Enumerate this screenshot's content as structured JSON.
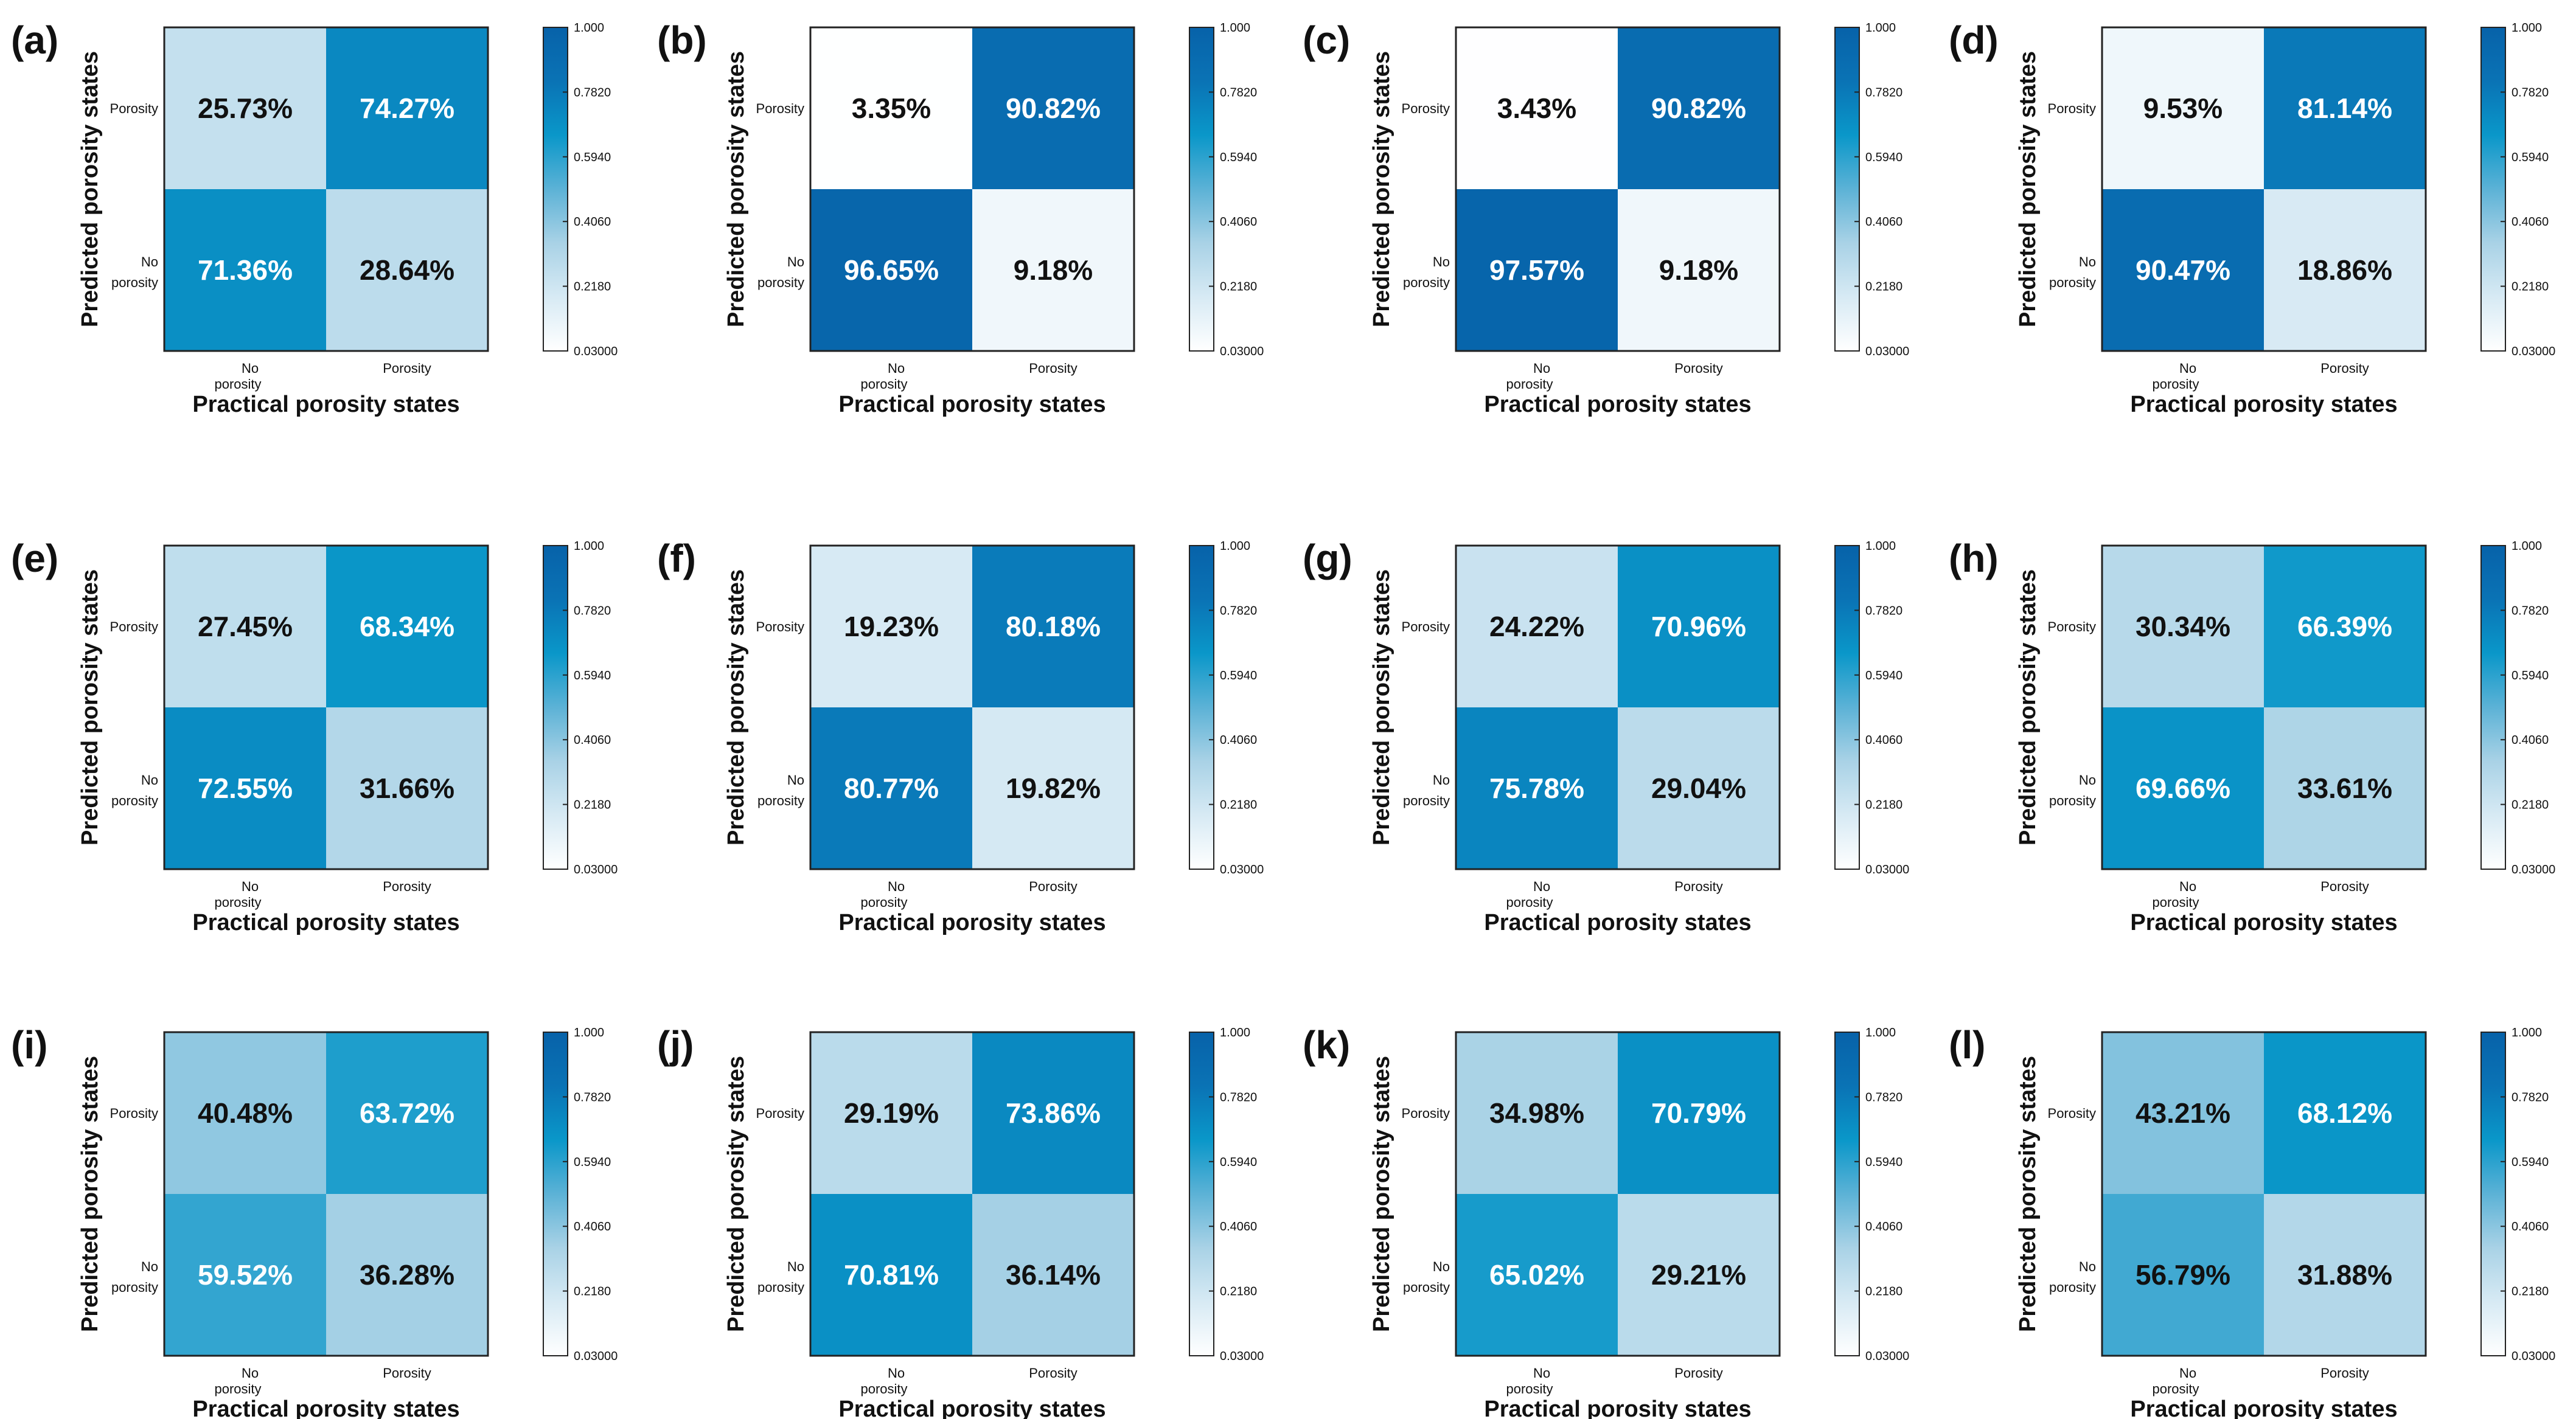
{
  "figure": {
    "colormap": {
      "low_color": "#ffffff",
      "high_color": "#0762a9",
      "stops": [
        "#ffffff",
        "#d7eaf4",
        "#a9d2e6",
        "#5cb2d6",
        "#0a97c9",
        "#0a73b5",
        "#0762a9"
      ]
    }
  },
  "chart_data": [
    {
      "type": "heatmap",
      "panel": "(a)",
      "xlabel": "Practical porosity states",
      "ylabel": "Predicted porosity states",
      "x_ticks": [
        "No porosity",
        "Porosity"
      ],
      "y_ticks": [
        "Porosity",
        "No porosity"
      ],
      "cells": [
        [
          "25.73%",
          "74.27%"
        ],
        [
          "71.36%",
          "28.64%"
        ]
      ],
      "values": [
        [
          0.2573,
          0.7427
        ],
        [
          0.7136,
          0.2864
        ]
      ],
      "colorbar": {
        "min": 0.03,
        "max": 1.0,
        "ticks": [
          "1.000",
          "0.7820",
          "0.5940",
          "0.4060",
          "0.2180",
          "0.03000"
        ]
      }
    },
    {
      "type": "heatmap",
      "panel": "(b)",
      "xlabel": "Practical porosity states",
      "ylabel": "Predicted porosity states",
      "x_ticks": [
        "No porosity",
        "Porosity"
      ],
      "y_ticks": [
        "Porosity",
        "No porosity"
      ],
      "cells": [
        [
          "3.35%",
          "90.82%"
        ],
        [
          "96.65%",
          "9.18%"
        ]
      ],
      "values": [
        [
          0.0335,
          0.9082
        ],
        [
          0.9665,
          0.0918
        ]
      ],
      "colorbar": {
        "min": 0.03,
        "max": 1.0,
        "ticks": [
          "1.000",
          "0.7820",
          "0.5940",
          "0.4060",
          "0.2180",
          "0.03000"
        ]
      }
    },
    {
      "type": "heatmap",
      "panel": "(c)",
      "xlabel": "Practical porosity states",
      "ylabel": "Predicted porosity states",
      "x_ticks": [
        "No porosity",
        "Porosity"
      ],
      "y_ticks": [
        "Porosity",
        "No porosity"
      ],
      "cells": [
        [
          "3.43%",
          "90.82%"
        ],
        [
          "97.57%",
          "9.18%"
        ]
      ],
      "values": [
        [
          0.0343,
          0.9082
        ],
        [
          0.9757,
          0.0918
        ]
      ],
      "colorbar": {
        "min": 0.03,
        "max": 1.0,
        "ticks": [
          "1.000",
          "0.7820",
          "0.5940",
          "0.4060",
          "0.2180",
          "0.03000"
        ]
      }
    },
    {
      "type": "heatmap",
      "panel": "(d)",
      "xlabel": "Practical porosity states",
      "ylabel": "Predicted porosity states",
      "x_ticks": [
        "No porosity",
        "Porosity"
      ],
      "y_ticks": [
        "Porosity",
        "No porosity"
      ],
      "cells": [
        [
          "9.53%",
          "81.14%"
        ],
        [
          "90.47%",
          "18.86%"
        ]
      ],
      "values": [
        [
          0.0953,
          0.8114
        ],
        [
          0.9047,
          0.1886
        ]
      ],
      "colorbar": {
        "min": 0.03,
        "max": 1.0,
        "ticks": [
          "1.000",
          "0.7820",
          "0.5940",
          "0.4060",
          "0.2180",
          "0.03000"
        ]
      }
    },
    {
      "type": "heatmap",
      "panel": "(e)",
      "xlabel": "Practical porosity states",
      "ylabel": "Predicted porosity states",
      "x_ticks": [
        "No porosity",
        "Porosity"
      ],
      "y_ticks": [
        "Porosity",
        "No porosity"
      ],
      "cells": [
        [
          "27.45%",
          "68.34%"
        ],
        [
          "72.55%",
          "31.66%"
        ]
      ],
      "values": [
        [
          0.2745,
          0.6834
        ],
        [
          0.7255,
          0.3166
        ]
      ],
      "colorbar": {
        "min": 0.03,
        "max": 1.0,
        "ticks": [
          "1.000",
          "0.7820",
          "0.5940",
          "0.4060",
          "0.2180",
          "0.03000"
        ]
      }
    },
    {
      "type": "heatmap",
      "panel": "(f)",
      "xlabel": "Practical porosity states",
      "ylabel": "Predicted porosity states",
      "x_ticks": [
        "No porosity",
        "Porosity"
      ],
      "y_ticks": [
        "Porosity",
        "No porosity"
      ],
      "cells": [
        [
          "19.23%",
          "80.18%"
        ],
        [
          "80.77%",
          "19.82%"
        ]
      ],
      "values": [
        [
          0.1923,
          0.8018
        ],
        [
          0.8077,
          0.1982
        ]
      ],
      "colorbar": {
        "min": 0.03,
        "max": 1.0,
        "ticks": [
          "1.000",
          "0.7820",
          "0.5940",
          "0.4060",
          "0.2180",
          "0.03000"
        ]
      }
    },
    {
      "type": "heatmap",
      "panel": "(g)",
      "xlabel": "Practical porosity states",
      "ylabel": "Predicted porosity states",
      "x_ticks": [
        "No porosity",
        "Porosity"
      ],
      "y_ticks": [
        "Porosity",
        "No porosity"
      ],
      "cells": [
        [
          "24.22%",
          "70.96%"
        ],
        [
          "75.78%",
          "29.04%"
        ]
      ],
      "values": [
        [
          0.2422,
          0.7096
        ],
        [
          0.7578,
          0.2904
        ]
      ],
      "colorbar": {
        "min": 0.03,
        "max": 1.0,
        "ticks": [
          "1.000",
          "0.7820",
          "0.5940",
          "0.4060",
          "0.2180",
          "0.03000"
        ]
      }
    },
    {
      "type": "heatmap",
      "panel": "(h)",
      "xlabel": "Practical porosity states",
      "ylabel": "Predicted porosity states",
      "x_ticks": [
        "No porosity",
        "Porosity"
      ],
      "y_ticks": [
        "Porosity",
        "No porosity"
      ],
      "cells": [
        [
          "30.34%",
          "66.39%"
        ],
        [
          "69.66%",
          "33.61%"
        ]
      ],
      "values": [
        [
          0.3034,
          0.6639
        ],
        [
          0.6966,
          0.3361
        ]
      ],
      "colorbar": {
        "min": 0.03,
        "max": 1.0,
        "ticks": [
          "1.000",
          "0.7820",
          "0.5940",
          "0.4060",
          "0.2180",
          "0.03000"
        ]
      }
    },
    {
      "type": "heatmap",
      "panel": "(i)",
      "xlabel": "Practical porosity states",
      "ylabel": "Predicted porosity states",
      "x_ticks": [
        "No porosity",
        "Porosity"
      ],
      "y_ticks": [
        "Porosity",
        "No porosity"
      ],
      "cells": [
        [
          "40.48%",
          "63.72%"
        ],
        [
          "59.52%",
          "36.28%"
        ]
      ],
      "values": [
        [
          0.4048,
          0.6372
        ],
        [
          0.5952,
          0.3628
        ]
      ],
      "colorbar": {
        "min": 0.03,
        "max": 1.0,
        "ticks": [
          "1.000",
          "0.7820",
          "0.5940",
          "0.4060",
          "0.2180",
          "0.03000"
        ]
      }
    },
    {
      "type": "heatmap",
      "panel": "(j)",
      "xlabel": "Practical porosity states",
      "ylabel": "Predicted porosity states",
      "x_ticks": [
        "No porosity",
        "Porosity"
      ],
      "y_ticks": [
        "Porosity",
        "No porosity"
      ],
      "cells": [
        [
          "29.19%",
          "73.86%"
        ],
        [
          "70.81%",
          "36.14%"
        ]
      ],
      "values": [
        [
          0.2919,
          0.7386
        ],
        [
          0.7081,
          0.3614
        ]
      ],
      "colorbar": {
        "min": 0.03,
        "max": 1.0,
        "ticks": [
          "1.000",
          "0.7820",
          "0.5940",
          "0.4060",
          "0.2180",
          "0.03000"
        ]
      }
    },
    {
      "type": "heatmap",
      "panel": "(k)",
      "xlabel": "Practical porosity states",
      "ylabel": "Predicted porosity states",
      "x_ticks": [
        "No porosity",
        "Porosity"
      ],
      "y_ticks": [
        "Porosity",
        "No porosity"
      ],
      "cells": [
        [
          "34.98%",
          "70.79%"
        ],
        [
          "65.02%",
          "29.21%"
        ]
      ],
      "values": [
        [
          0.3498,
          0.7079
        ],
        [
          0.6502,
          0.2921
        ]
      ],
      "colorbar": {
        "min": 0.03,
        "max": 1.0,
        "ticks": [
          "1.000",
          "0.7820",
          "0.5940",
          "0.4060",
          "0.2180",
          "0.03000"
        ]
      }
    },
    {
      "type": "heatmap",
      "panel": "(l)",
      "xlabel": "Practical porosity states",
      "ylabel": "Predicted porosity states",
      "x_ticks": [
        "No porosity",
        "Porosity"
      ],
      "y_ticks": [
        "Porosity",
        "No porosity"
      ],
      "cells": [
        [
          "43.21%",
          "68.12%"
        ],
        [
          "56.79%",
          "31.88%"
        ]
      ],
      "values": [
        [
          0.4321,
          0.6812
        ],
        [
          0.5679,
          0.3188
        ]
      ],
      "colorbar": {
        "min": 0.03,
        "max": 1.0,
        "ticks": [
          "1.000",
          "0.7820",
          "0.5940",
          "0.4060",
          "0.2180",
          "0.03000"
        ]
      }
    }
  ]
}
